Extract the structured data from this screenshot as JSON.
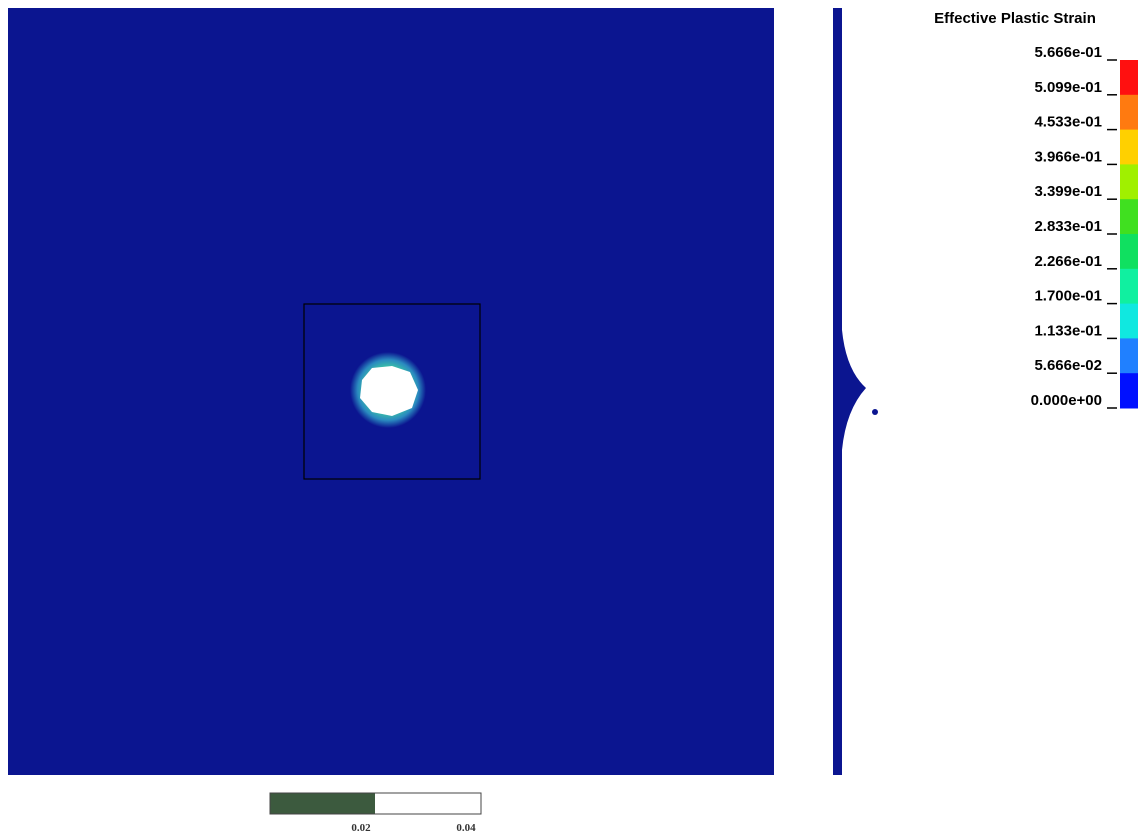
{
  "legend": {
    "title": "Effective Plastic Strain",
    "levels": [
      "5.666e-01",
      "5.099e-01",
      "4.533e-01",
      "3.966e-01",
      "3.399e-01",
      "2.833e-01",
      "2.266e-01",
      "1.700e-01",
      "1.133e-01",
      "5.666e-02",
      "0.000e+00"
    ],
    "band_colors": [
      "#ff1010",
      "#ff7a10",
      "#ffd000",
      "#a0f000",
      "#40e020",
      "#10e060",
      "#10f0a0",
      "#10e8e0",
      "#2080ff",
      "#0010ff"
    ]
  },
  "scale_bar": {
    "labels": [
      "0.02",
      "0.04"
    ]
  }
}
